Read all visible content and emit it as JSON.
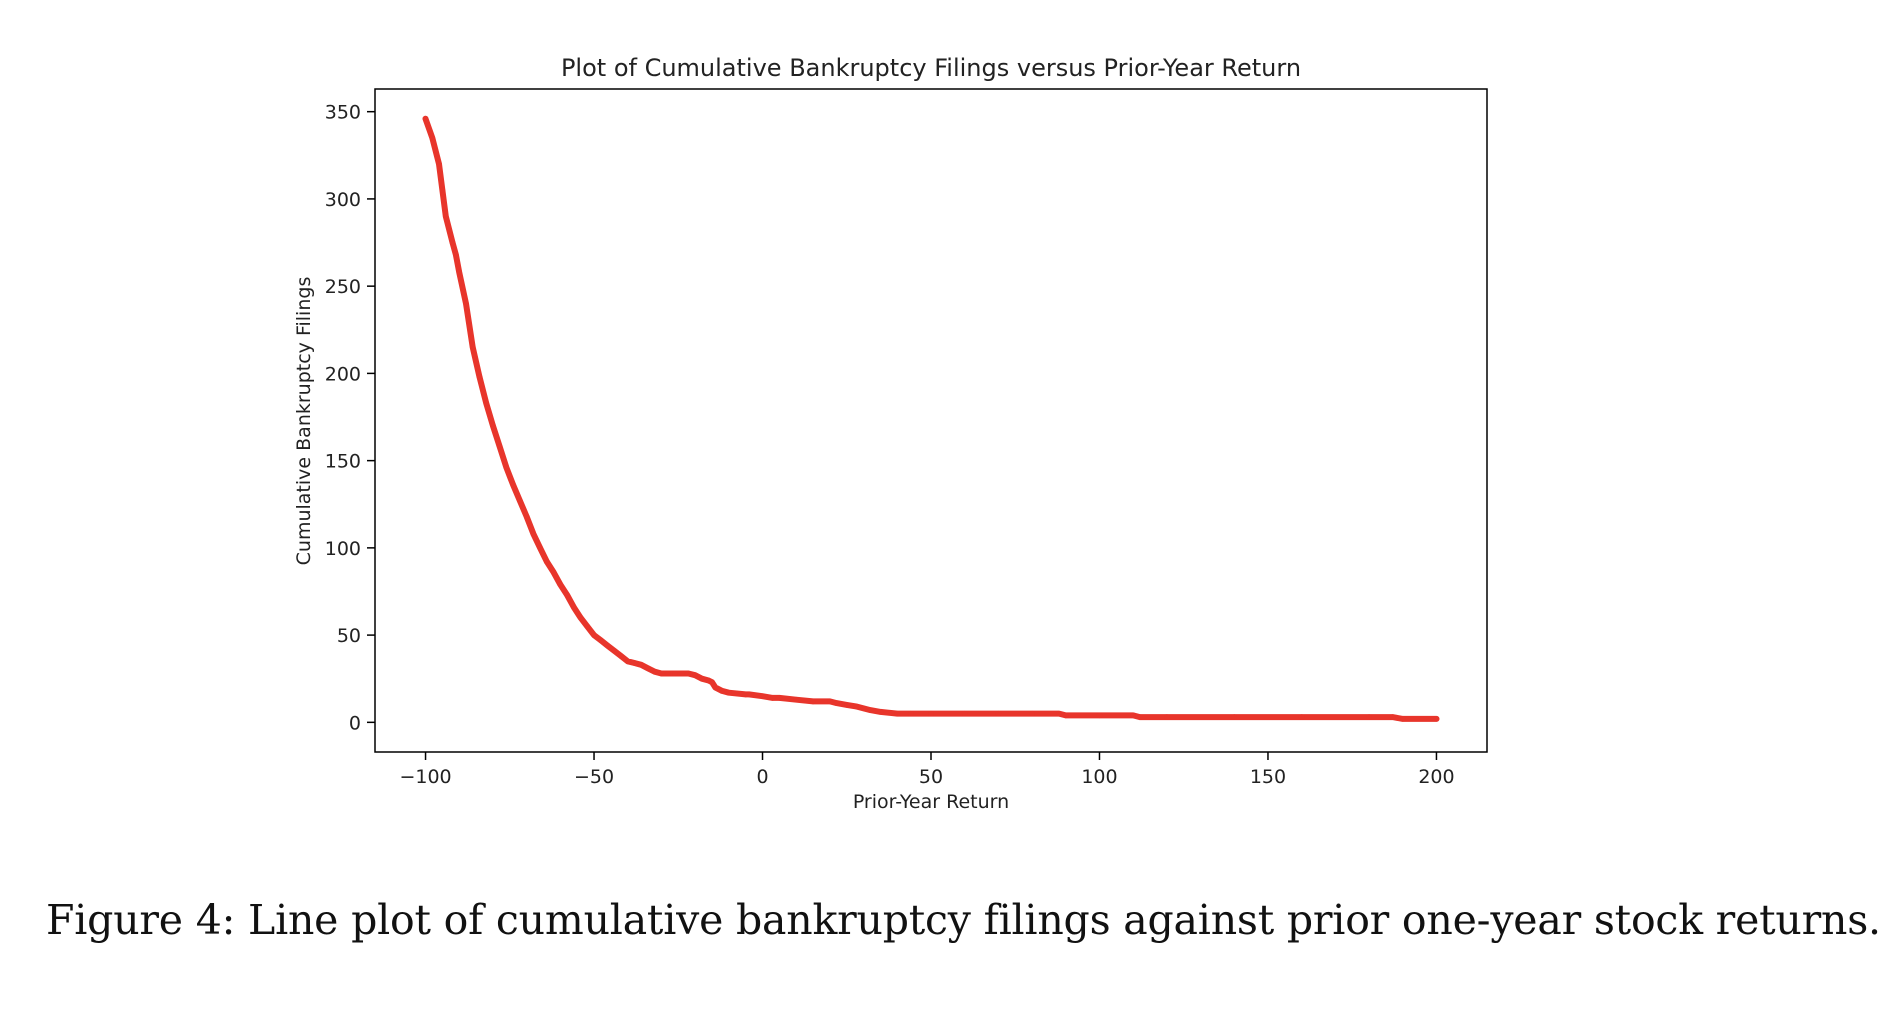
{
  "chart_data": {
    "type": "line",
    "title": "Plot of Cumulative Bankruptcy Filings versus Prior-Year Return",
    "xlabel": "Prior-Year Return",
    "ylabel": "Cumulative Bankruptcy Filings",
    "xlim": [
      -115,
      215
    ],
    "ylim": [
      -17,
      363
    ],
    "xticks": [
      -100,
      -50,
      0,
      50,
      100,
      150,
      200
    ],
    "xtick_labels": [
      "−100",
      "−50",
      "0",
      "50",
      "100",
      "150",
      "200"
    ],
    "yticks": [
      0,
      50,
      100,
      150,
      200,
      250,
      300,
      350
    ],
    "ytick_labels": [
      "0",
      "50",
      "100",
      "150",
      "200",
      "250",
      "300",
      "350"
    ],
    "grid": false,
    "series": [
      {
        "name": "Cumulative Bankruptcy Filings",
        "color": "#e8352b",
        "x": [
          -100,
          -98,
          -96,
          -95,
          -94,
          -92,
          -91,
          -90,
          -88,
          -86,
          -84,
          -82,
          -80,
          -78,
          -76,
          -74,
          -72,
          -70,
          -68,
          -66,
          -64,
          -62,
          -60,
          -58,
          -56,
          -54,
          -52,
          -50,
          -48,
          -46,
          -44,
          -42,
          -40,
          -38,
          -36,
          -34,
          -32,
          -30,
          -28,
          -26,
          -24,
          -22,
          -20,
          -18,
          -16,
          -15,
          -14,
          -12,
          -10,
          -5,
          -4,
          0,
          3,
          5,
          10,
          15,
          20,
          22,
          25,
          28,
          30,
          32,
          35,
          40,
          44,
          50,
          60,
          70,
          80,
          88,
          90,
          100,
          110,
          112,
          120,
          140,
          160,
          180,
          187,
          190,
          200
        ],
        "y": [
          346,
          335,
          320,
          305,
          290,
          275,
          268,
          258,
          240,
          215,
          198,
          183,
          170,
          158,
          146,
          136,
          127,
          118,
          108,
          100,
          92,
          86,
          79,
          73,
          66,
          60,
          55,
          50,
          47,
          44,
          41,
          38,
          35,
          34,
          33,
          31,
          29,
          28,
          28,
          28,
          28,
          28,
          27,
          25,
          24,
          23,
          20,
          18,
          17,
          16,
          16,
          15,
          14,
          14,
          13,
          12,
          12,
          11,
          10,
          9,
          8,
          7,
          6,
          5,
          5,
          5,
          5,
          5,
          5,
          5,
          4,
          4,
          4,
          3,
          3,
          3,
          3,
          3,
          3,
          2,
          2
        ]
      }
    ]
  },
  "caption": "Figure 4: Line plot of cumulative bankruptcy filings against prior one-year stock returns."
}
